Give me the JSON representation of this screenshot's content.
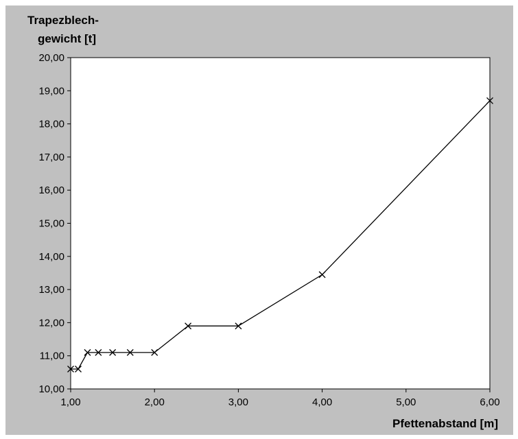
{
  "chart_data": {
    "type": "line",
    "ylabel_lines": [
      "Trapezblech-",
      "gewicht [t]"
    ],
    "xlabel": "Pfettenabstand [m]",
    "xlim": [
      1,
      6
    ],
    "ylim": [
      10,
      20
    ],
    "x_ticks": [
      "1,00",
      "2,00",
      "3,00",
      "4,00",
      "5,00",
      "6,00"
    ],
    "y_ticks": [
      "10,00",
      "11,00",
      "12,00",
      "13,00",
      "14,00",
      "15,00",
      "16,00",
      "17,00",
      "18,00",
      "19,00",
      "20,00"
    ],
    "grid": false,
    "marker": "x",
    "series": [
      {
        "points": [
          {
            "x": 1.0,
            "y": 10.6
          },
          {
            "x": 1.09,
            "y": 10.6
          },
          {
            "x": 1.2,
            "y": 11.1
          },
          {
            "x": 1.33,
            "y": 11.1
          },
          {
            "x": 1.5,
            "y": 11.1
          },
          {
            "x": 1.71,
            "y": 11.1
          },
          {
            "x": 2.0,
            "y": 11.1
          },
          {
            "x": 2.4,
            "y": 11.9
          },
          {
            "x": 3.0,
            "y": 11.9
          },
          {
            "x": 4.0,
            "y": 13.45
          },
          {
            "x": 6.0,
            "y": 18.7
          }
        ]
      }
    ]
  },
  "colors": {
    "chart_background": "#c0c0c0",
    "plot_background": "#ffffff",
    "line": "#000000"
  }
}
